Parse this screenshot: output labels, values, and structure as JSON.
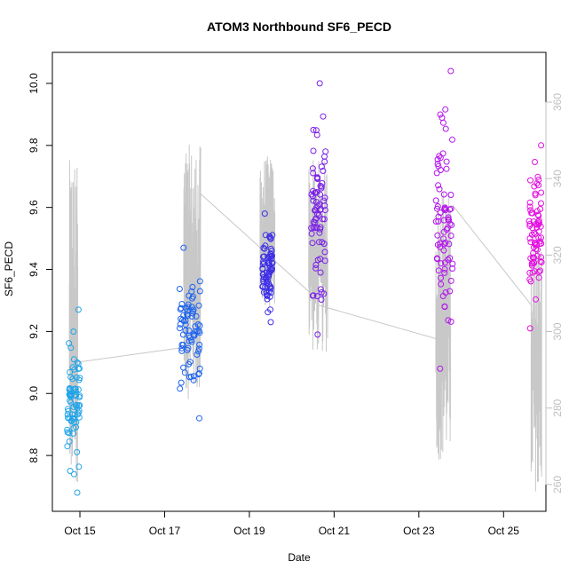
{
  "chart_data": {
    "type": "scatter",
    "title": "ATOM3 Northbound SF6_PECD",
    "xlabel": "Date",
    "ylabel": "SF6_PECD",
    "x_ticks": [
      "Oct 15",
      "Oct 17",
      "Oct 19",
      "Oct 21",
      "Oct 23",
      "Oct 25"
    ],
    "x_tick_days": [
      15,
      17,
      19,
      21,
      23,
      25
    ],
    "xlim": [
      14.35,
      26.0
    ],
    "ylim_left": [
      8.62,
      10.1
    ],
    "y_ticks_left": [
      "8.8",
      "9.0",
      "9.2",
      "9.4",
      "9.6",
      "9.8",
      "10.0"
    ],
    "ylim_right": [
      253,
      373
    ],
    "y_ticks_right": [
      "260",
      "280",
      "300",
      "320",
      "340",
      "360"
    ],
    "grid": false,
    "legend": "none",
    "colors": {
      "points_gradient": [
        "#1fa4e8",
        "#1c63ee",
        "#3d2ee6",
        "#7a1ee8",
        "#b414ec",
        "#e30ee0"
      ],
      "secondary_line": "#c8c8c8",
      "right_axis": "#bfbfbf"
    },
    "series": [
      {
        "values_note": "",
        "clusters": [
          {
            "x": [
              14.7,
              15.0
            ],
            "y": [
              8.68,
              9.27
            ],
            "color": "#1fa4e8"
          },
          {
            "x": [
              17.35,
              17.85
            ],
            "y": [
              8.92,
              9.47
            ],
            "color": "#1c63ee"
          },
          {
            "x": [
              19.3,
              19.55
            ],
            "y": [
              9.23,
              9.58
            ],
            "color": "#3d2ee6"
          },
          {
            "x": [
              20.45,
              20.8
            ],
            "y": [
              9.19,
              10.0
            ],
            "color": "#7a1ee8"
          },
          {
            "x": [
              23.4,
              23.8
            ],
            "y": [
              9.08,
              10.04
            ],
            "color": "#b414ec"
          },
          {
            "x": [
              25.6,
              25.9
            ],
            "y": [
              9.21,
              9.8
            ],
            "color": "#e30ee0"
          }
        ]
      },
      {
        "axis": "right",
        "color": "#c8c8c8",
        "segments": [
          {
            "x": [
              14.75,
              14.95
            ],
            "y": [
              260,
              345
            ]
          },
          {
            "x": [
              17.45,
              17.85
            ],
            "y": [
              282,
              349
            ]
          },
          {
            "x": [
              19.25,
              19.6
            ],
            "y": [
              306,
              346
            ]
          },
          {
            "x": [
              20.4,
              20.85
            ],
            "y": [
              294,
              345
            ]
          },
          {
            "x": [
              23.4,
              23.75
            ],
            "y": [
              266,
              338
            ]
          },
          {
            "x": [
              25.65,
              25.9
            ],
            "y": [
              258,
              327
            ]
          }
        ],
        "connectors": {
          "x": [
            14.95,
            17.55,
            17.85,
            20.55,
            20.6,
            23.45,
            23.8,
            25.65
          ],
          "y": [
            292,
            296,
            336,
            309,
            307,
            298,
            333,
            307
          ]
        }
      }
    ]
  }
}
